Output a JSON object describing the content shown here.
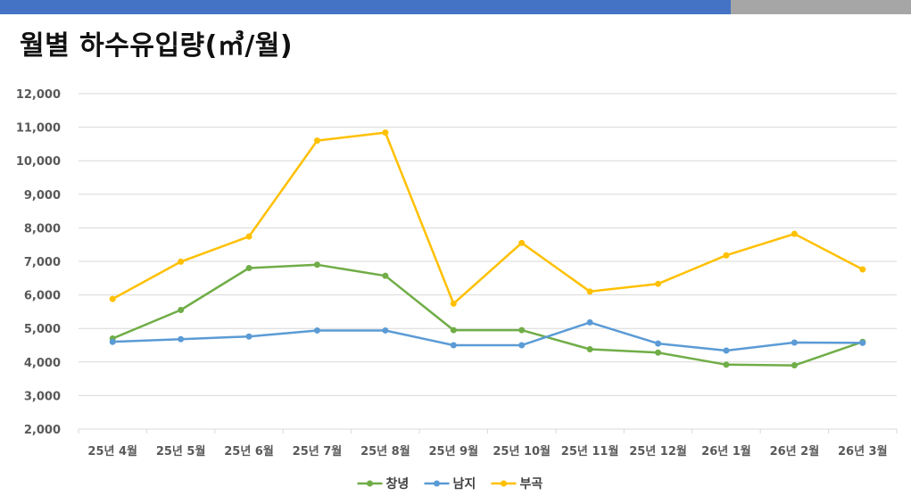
{
  "header": {
    "title": "월별 하수유입량(㎥/월)",
    "accent_color": "#4472C4",
    "secondary_color": "#A6A6A6"
  },
  "chart_data": {
    "type": "line",
    "title": "월별 하수유입량(㎥/월)",
    "categories": [
      "25년 4월",
      "25년 5월",
      "25년 6월",
      "25년 7월",
      "25년 8월",
      "25년 9월",
      "25년 10월",
      "25년 11월",
      "25년 12월",
      "26년 1월",
      "26년 2월",
      "26년 3월"
    ],
    "series": [
      {
        "name": "창녕",
        "color": "#70AD47",
        "values": [
          4700,
          5550,
          6800,
          6900,
          6570,
          4950,
          4950,
          4380,
          4280,
          3920,
          3900,
          4600
        ]
      },
      {
        "name": "남지",
        "color": "#5B9BD5",
        "values": [
          4600,
          4680,
          4760,
          4940,
          4940,
          4500,
          4500,
          5180,
          4550,
          4340,
          4580,
          4570
        ]
      },
      {
        "name": "부곡",
        "color": "#FFC000",
        "values": [
          5880,
          6990,
          7740,
          10600,
          10840,
          5740,
          7550,
          6100,
          6330,
          7180,
          7820,
          6760
        ]
      }
    ],
    "ylim": [
      2000,
      12000
    ],
    "yticks": [
      "2,000",
      "3,000",
      "4,000",
      "5,000",
      "6,000",
      "7,000",
      "8,000",
      "9,000",
      "10,000",
      "11,000",
      "12,000"
    ],
    "grid": true,
    "legend": "bottom"
  }
}
